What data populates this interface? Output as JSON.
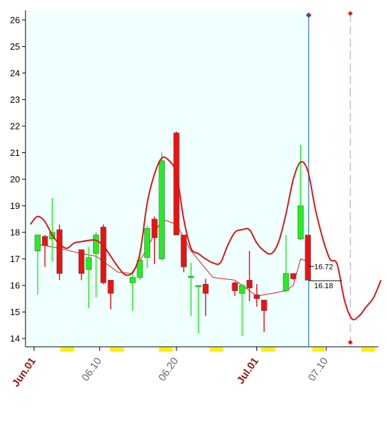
{
  "colors": {
    "plot_bg": "#f0ffff",
    "up_candle": "#22ee22",
    "down_candle": "#ee1111",
    "curve": "#dd1111",
    "marker_line": "#2277bb",
    "yellow_marker": "#ffee00",
    "month_label": "#991111",
    "date_label": "#666666"
  },
  "chart_data": {
    "type": "candlestick",
    "ylim": [
      13.75,
      26.4
    ],
    "xlim": [
      0,
      50
    ],
    "grid": false,
    "yticks": [
      14,
      15,
      16,
      17,
      18,
      19,
      20,
      21,
      22,
      23,
      24,
      25,
      26
    ],
    "xticks": [
      {
        "label": "Jun.01",
        "x": 0.5,
        "month_start": true
      },
      {
        "label": "06.10",
        "x": 9.5,
        "month_start": false
      },
      {
        "label": "06.20",
        "x": 20.0,
        "month_start": false
      },
      {
        "label": "Jul.01",
        "x": 31.0,
        "month_start": true
      },
      {
        "label": "07.10",
        "x": 40.5,
        "month_start": false
      }
    ],
    "candles": [
      {
        "x": 1,
        "o": 17.3,
        "h": 17.9,
        "l": 15.65,
        "c": 17.9
      },
      {
        "x": 2,
        "o": 17.85,
        "h": 17.9,
        "l": 16.7,
        "c": 17.5
      },
      {
        "x": 3,
        "o": 17.75,
        "h": 19.3,
        "l": 16.9,
        "c": 18.0
      },
      {
        "x": 4,
        "o": 18.1,
        "h": 18.3,
        "l": 16.2,
        "c": 16.45
      },
      {
        "x": 7,
        "o": 17.35,
        "h": 17.35,
        "l": 16.2,
        "c": 16.45
      },
      {
        "x": 8,
        "o": 16.6,
        "h": 17.45,
        "l": 15.15,
        "c": 17.05
      },
      {
        "x": 9,
        "o": 17.2,
        "h": 18.0,
        "l": 15.55,
        "c": 17.9
      },
      {
        "x": 10,
        "o": 18.2,
        "h": 18.3,
        "l": 16.05,
        "c": 16.1
      },
      {
        "x": 11,
        "o": 16.2,
        "h": 16.2,
        "l": 15.1,
        "c": 15.7
      },
      {
        "x": 14,
        "o": 16.1,
        "h": 16.45,
        "l": 15.05,
        "c": 16.3
      },
      {
        "x": 15,
        "o": 16.3,
        "h": 17.3,
        "l": 16.2,
        "c": 16.95
      },
      {
        "x": 16,
        "o": 17.05,
        "h": 18.25,
        "l": 16.65,
        "c": 18.15
      },
      {
        "x": 17,
        "o": 18.5,
        "h": 18.6,
        "l": 16.8,
        "c": 17.8
      },
      {
        "x": 18,
        "o": 17.0,
        "h": 21.0,
        "l": 16.95,
        "c": 20.7
      },
      {
        "x": 20,
        "o": 21.75,
        "h": 21.8,
        "l": 17.9,
        "c": 17.9
      },
      {
        "x": 21,
        "o": 17.9,
        "h": 17.9,
        "l": 16.5,
        "c": 16.7
      },
      {
        "x": 22,
        "o": 16.3,
        "h": 16.85,
        "l": 14.85,
        "c": 16.35
      },
      {
        "x": 23,
        "o": 16.0,
        "h": 16.0,
        "l": 14.2,
        "c": 16.0
      },
      {
        "x": 24,
        "o": 16.05,
        "h": 16.25,
        "l": 14.85,
        "c": 15.7
      },
      {
        "x": 28,
        "o": 16.1,
        "h": 16.15,
        "l": 15.6,
        "c": 15.8
      },
      {
        "x": 29,
        "o": 15.7,
        "h": 16.05,
        "l": 14.1,
        "c": 16.0
      },
      {
        "x": 30,
        "o": 16.2,
        "h": 17.3,
        "l": 15.4,
        "c": 15.9
      },
      {
        "x": 31,
        "o": 15.65,
        "h": 16.05,
        "l": 15.2,
        "c": 15.5
      },
      {
        "x": 32,
        "o": 15.45,
        "h": 15.45,
        "l": 14.25,
        "c": 15.05
      },
      {
        "x": 35,
        "o": 15.8,
        "h": 17.9,
        "l": 15.75,
        "c": 16.45
      },
      {
        "x": 36,
        "o": 16.45,
        "h": 16.45,
        "l": 16.2,
        "c": 16.25
      },
      {
        "x": 37,
        "o": 17.75,
        "h": 21.3,
        "l": 17.7,
        "c": 19.0
      },
      {
        "x": 38,
        "o": 17.9,
        "h": 17.9,
        "l": 16.2,
        "c": 16.2
      }
    ],
    "smooth_curve": [
      [
        0.0,
        18.3
      ],
      [
        1,
        18.6
      ],
      [
        2,
        18.4
      ],
      [
        3,
        17.9
      ],
      [
        4,
        17.55
      ],
      [
        5,
        17.4
      ],
      [
        6,
        17.6
      ],
      [
        7,
        17.65
      ],
      [
        8,
        17.7
      ],
      [
        9,
        17.7
      ],
      [
        10,
        17.5
      ],
      [
        11,
        17.1
      ],
      [
        12,
        16.7
      ],
      [
        13,
        16.4
      ],
      [
        14,
        16.5
      ],
      [
        15,
        17.2
      ],
      [
        16,
        19.1
      ],
      [
        17,
        20.2
      ],
      [
        18,
        20.8
      ],
      [
        19,
        20.7
      ],
      [
        20,
        20.2
      ],
      [
        21,
        18.5
      ],
      [
        22,
        17.4
      ],
      [
        23,
        17.2
      ],
      [
        24,
        17.0
      ],
      [
        25,
        16.85
      ],
      [
        26,
        16.85
      ],
      [
        27,
        17.5
      ],
      [
        28,
        18.0
      ],
      [
        29,
        18.1
      ],
      [
        30,
        18.1
      ],
      [
        31,
        17.6
      ],
      [
        32,
        17.3
      ],
      [
        33,
        17.2
      ],
      [
        34,
        17.65
      ],
      [
        35,
        18.7
      ],
      [
        36,
        20.0
      ],
      [
        37,
        20.65
      ],
      [
        38,
        20.3
      ],
      [
        39,
        18.9
      ],
      [
        40,
        17.8
      ],
      [
        41,
        17.0
      ],
      [
        42,
        16.8
      ],
      [
        43,
        15.45
      ],
      [
        44,
        14.75
      ],
      [
        45,
        14.85
      ],
      [
        46,
        15.2
      ],
      [
        47,
        15.55
      ],
      [
        48,
        16.2
      ]
    ],
    "thin_line": [
      [
        1,
        17.55
      ],
      [
        4,
        17.4
      ],
      [
        7,
        17.2
      ],
      [
        9,
        17.1
      ],
      [
        12,
        16.5
      ],
      [
        14,
        16.45
      ],
      [
        16,
        17.4
      ],
      [
        18,
        18.5
      ],
      [
        20,
        18.3
      ],
      [
        22,
        17.3
      ],
      [
        25,
        16.3
      ],
      [
        28,
        16.2
      ],
      [
        31,
        15.6
      ],
      [
        33,
        15.7
      ],
      [
        35,
        15.8
      ],
      [
        36,
        16.0
      ],
      [
        37,
        17.0
      ],
      [
        38,
        16.9
      ]
    ],
    "current_x": 38.1,
    "forecast_x": 43.8,
    "annotations": [
      {
        "text": "16.72",
        "y": 16.72
      },
      {
        "text": "16.18",
        "y": 16.18
      }
    ],
    "yellow_markers": [
      [
        4.1,
        6.0
      ],
      [
        10.9,
        12.8
      ],
      [
        17.6,
        19.5
      ],
      [
        24.6,
        26.4
      ],
      [
        31.6,
        33.5
      ],
      [
        38.6,
        39.4
      ],
      [
        39.4,
        40.3
      ],
      [
        45.3,
        47.2
      ]
    ]
  }
}
